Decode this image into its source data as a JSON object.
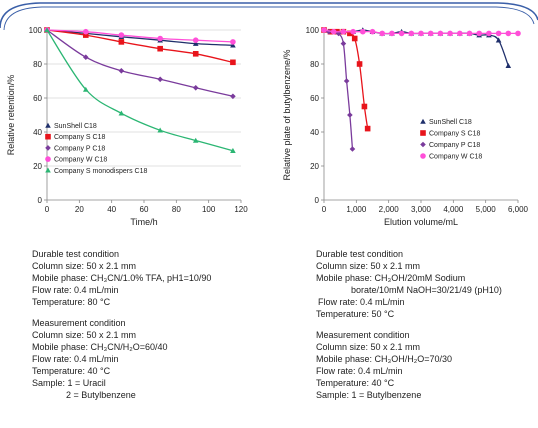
{
  "colors": {
    "frame": "#3a5fa8",
    "sunshell": "#1f2f6b",
    "company_s": "#e8141b",
    "company_p": "#7a3b9c",
    "company_w": "#ff4fd8",
    "company_s_mono": "#2bb673"
  },
  "chart_data": [
    {
      "type": "line",
      "xlabel": "Time/h",
      "ylabel": "Relative  retention/%",
      "xlim": [
        0,
        120
      ],
      "ylim": [
        0,
        100
      ],
      "xticks": [
        0,
        20,
        40,
        60,
        80,
        100,
        120
      ],
      "yticks": [
        0,
        20,
        40,
        60,
        80,
        100
      ],
      "grid": "horizontal",
      "legend_position": "lower-left",
      "series": [
        {
          "name": "SunShell C18",
          "marker": "triangle",
          "color": "#1f2f6b",
          "x": [
            0,
            24,
            46,
            70,
            92,
            115
          ],
          "y": [
            100,
            98,
            96,
            94,
            92,
            91
          ]
        },
        {
          "name": "Company S C18",
          "marker": "square",
          "color": "#e8141b",
          "x": [
            0,
            24,
            46,
            70,
            92,
            115
          ],
          "y": [
            100,
            97,
            93,
            89,
            86,
            81
          ]
        },
        {
          "name": "Company P C18",
          "marker": "diamond",
          "color": "#7a3b9c",
          "x": [
            0,
            24,
            46,
            70,
            92,
            115
          ],
          "y": [
            100,
            84,
            76,
            71,
            66,
            61
          ]
        },
        {
          "name": "Company W C18",
          "marker": "circle",
          "color": "#ff4fd8",
          "x": [
            0,
            24,
            46,
            70,
            92,
            115
          ],
          "y": [
            100,
            99,
            97,
            95,
            94,
            93
          ]
        },
        {
          "name": "Company S monodispers C18",
          "marker": "triangle",
          "color": "#2bb673",
          "x": [
            0,
            24,
            46,
            70,
            92,
            115
          ],
          "y": [
            100,
            65,
            51,
            41,
            35,
            29
          ]
        }
      ]
    },
    {
      "type": "line",
      "xlabel": "Elution volume/mL",
      "ylabel": "Relative plate of butylbenzene/%",
      "xlim": [
        0,
        6000
      ],
      "ylim": [
        0,
        100
      ],
      "xticks": [
        0,
        1000,
        2000,
        3000,
        4000,
        5000,
        6000
      ],
      "xticklabels": [
        "0",
        "1,000",
        "2,000",
        "3,000",
        "4,000",
        "5,000",
        "6,000"
      ],
      "yticks": [
        0,
        20,
        40,
        60,
        80,
        100
      ],
      "grid": "none",
      "legend_position": "center-right",
      "series": [
        {
          "name": "SunShell C18",
          "marker": "triangle",
          "color": "#1f2f6b",
          "x": [
            0,
            300,
            600,
            900,
            1200,
            1500,
            1800,
            2100,
            2400,
            2700,
            3000,
            3300,
            3600,
            3900,
            4200,
            4500,
            4800,
            5100,
            5400,
            5700
          ],
          "y": [
            100,
            99,
            99,
            99,
            100,
            99,
            98,
            98,
            99,
            98,
            98,
            98,
            98,
            98,
            98,
            98,
            97,
            97,
            94,
            79
          ]
        },
        {
          "name": "Company S C18",
          "marker": "square",
          "color": "#e8141b",
          "x": [
            0,
            200,
            400,
            600,
            800,
            950,
            1100,
            1250,
            1350
          ],
          "y": [
            100,
            99,
            99,
            99,
            98,
            95,
            80,
            55,
            42
          ]
        },
        {
          "name": "Company P C18",
          "marker": "diamond",
          "color": "#7a3b9c",
          "x": [
            0,
            150,
            300,
            450,
            600,
            700,
            800,
            880
          ],
          "y": [
            100,
            99,
            99,
            98,
            92,
            70,
            50,
            30
          ]
        },
        {
          "name": "Company W C18",
          "marker": "circle",
          "color": "#ff4fd8",
          "x": [
            0,
            300,
            600,
            900,
            1200,
            1500,
            1800,
            2100,
            2400,
            2700,
            3000,
            3300,
            3600,
            3900,
            4200,
            4500,
            4800,
            5100,
            5400,
            5700,
            6000
          ],
          "y": [
            100,
            99,
            99,
            99,
            99,
            99,
            98,
            98,
            98,
            98,
            98,
            98,
            98,
            98,
            98,
            98,
            98,
            98,
            98,
            98,
            98
          ]
        }
      ]
    }
  ],
  "conditions_left": {
    "durable_title": "Durable test condition",
    "column_size": "Column size:  50 x 2.1 mm",
    "mobile_phase": "Mobile phase:  CH₃CN/1.0% TFA, pH1=10/90",
    "flow_rate": "Flow rate: 0.4 mL/min",
    "temperature": "Temperature: 80 °C",
    "measure_title": "Measurement condition",
    "m_column_size": "Column size: 50 x 2.1 mm",
    "m_mobile_phase": "Mobile phase: CH₃CN/H₂O=60/40",
    "m_flow_rate": "Flow rate: 0.4 mL/min",
    "m_temperature": "Temperature: 40 °C",
    "sample_1": "Sample: 1 = Uracil",
    "sample_2": "2 = Butylbenzene"
  },
  "conditions_right": {
    "durable_title": "Durable test condition",
    "column_size": "Column size:  50 x 2.1 mm",
    "mobile_phase_1": "Mobile phase: CH₃OH/20mM Sodium",
    "mobile_phase_2": "borate/10mM NaOH=30/21/49 (pH10)",
    "flow_rate": "Flow rate: 0.4 mL/min",
    "temperature": "Temperature: 50 °C",
    "measure_title": "Measurement condition",
    "m_column_size": "Column size: 50 x 2.1 mm",
    "m_mobile_phase": "Mobile phase: CH₃OH/H₂O=70/30",
    "m_flow_rate": "Flow rate: 0.4 mL/min",
    "m_temperature": "Temperature: 40 °C",
    "sample_1": "Sample: 1 = Butylbenzene"
  }
}
